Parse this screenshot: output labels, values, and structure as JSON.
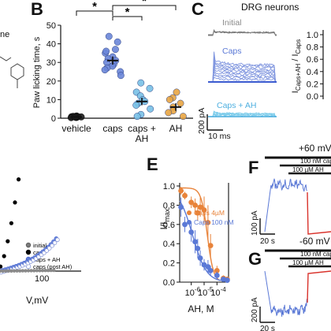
{
  "panel_letters": {
    "b": "B",
    "c": "C",
    "e": "E",
    "f": "F",
    "g": "G"
  },
  "fragments": {
    "top_left": "ne"
  },
  "colors": {
    "vehicle": "#1a1a1a",
    "caps": "#6a86d8",
    "caps_ah": "#78c0e6",
    "ah": "#e8a542",
    "orange": "#e8833a",
    "blue": "#5b79d6",
    "red": "#d9322b",
    "initial_trace": "#7a7a7a"
  },
  "chart_data": [
    {
      "id": "B",
      "type": "scatter",
      "categories": [
        "vehicle",
        "caps",
        "caps +\nAH",
        "AH"
      ],
      "ylabel": "Paw licking time, s",
      "ylim": [
        0,
        50
      ],
      "yticks": [
        0,
        10,
        20,
        30,
        40,
        50
      ],
      "groups": [
        {
          "name": "vehicle",
          "points": [
            0.4,
            0.6,
            0.8,
            1.0,
            0.5,
            1.2,
            0.3,
            0.7,
            0.9,
            0.6
          ],
          "mean": 0.7,
          "sem": 0.2
        },
        {
          "name": "caps",
          "points": [
            44,
            41,
            37,
            35,
            33,
            32,
            31,
            30,
            29,
            28,
            27,
            26,
            25,
            23,
            36
          ],
          "mean": 31,
          "sem": 2.2
        },
        {
          "name": "caps + AH",
          "points": [
            19,
            16,
            14,
            12,
            10,
            9,
            8,
            7,
            5,
            2,
            1
          ],
          "mean": 9,
          "sem": 2
        },
        {
          "name": "AH",
          "points": [
            14,
            11,
            10,
            8,
            6,
            4,
            3,
            1
          ],
          "mean": 6,
          "sem": 2
        }
      ],
      "significance": [
        {
          "from": "vehicle",
          "to": "caps",
          "label": "*"
        },
        {
          "from": "caps",
          "to": "AH",
          "label": "*"
        },
        {
          "from": "caps",
          "to": "caps + AH",
          "label": "*"
        }
      ]
    },
    {
      "id": "C",
      "type": "line",
      "title": "DRG neurons",
      "trace_labels": [
        "Initial",
        "Caps",
        "Caps + AH"
      ],
      "scale_bar": {
        "current": "200 pA",
        "time": "10 ms"
      },
      "ylabel": "Iₑ",
      "ylabel_parts": {
        "main": "I",
        "sub_num": "Caps+AH",
        "sep": " / I",
        "sub_den": "Caps"
      },
      "ylim": [
        0,
        1.0
      ],
      "yticks": [
        "1.0",
        "0.8",
        "0.6",
        "0.4",
        "0.2",
        "0.0"
      ]
    },
    {
      "id": "D",
      "type": "scatter",
      "xlabel": "V,mV",
      "xticks": [
        "100"
      ],
      "series": [
        {
          "name": "initial"
        },
        {
          "name": "caps"
        },
        {
          "name": "caps + AH"
        },
        {
          "name": "caps (post AH)"
        }
      ]
    },
    {
      "id": "E",
      "type": "line",
      "xlabel": "AH,  M",
      "ylabel_parts": {
        "main": "I/I",
        "sub": "max"
      },
      "xscale": "log",
      "xlim_exp": [
        -6.9,
        -3.1
      ],
      "xticks_exp": [
        -6,
        -5,
        -4
      ],
      "ylim": [
        0,
        1.0
      ],
      "yticks": [
        "0.0",
        "0.2",
        "0.4",
        "0.6",
        "0.8",
        "1.0"
      ],
      "x_exp": [
        -6.8,
        -6.5,
        -6.0,
        -5.7,
        -5.5,
        -5.3,
        -5.0,
        -4.7,
        -4.5,
        -4.0,
        -3.5,
        -3.2
      ],
      "series": [
        {
          "name": "Caps 4µM",
          "values": [
            0.95,
            0.9,
            0.83,
            0.8,
            0.72,
            0.78,
            0.75,
            0.62,
            0.38,
            0.12,
            0.04,
            0.03
          ],
          "err": [
            0.04,
            0.04,
            0.06,
            0.07,
            0.08,
            0.1,
            0.14,
            0.18,
            0.12,
            0.05,
            0.03,
            0.02
          ],
          "fit_ic50_exp": -4.75,
          "fit_hill": 1.8
        },
        {
          "name": "Caps 100 nM",
          "values": [
            0.78,
            0.6,
            0.52,
            0.42,
            0.35,
            0.25,
            0.18,
            0.16,
            0.12,
            0.07,
            0.03,
            0.02
          ],
          "err": [
            0.1,
            0.08,
            0.1,
            0.12,
            0.1,
            0.08,
            0.06,
            0.07,
            0.05,
            0.04,
            0.02,
            0.02
          ],
          "fit_ic50_exp": -5.9,
          "fit_hill": 0.8
        }
      ]
    },
    {
      "id": "F",
      "type": "line",
      "voltage": "+60 mV",
      "bars": [
        "100 nM cap",
        "100 µM AH"
      ],
      "scale_bar": {
        "current": "100 pA",
        "time": "20 s"
      }
    },
    {
      "id": "G",
      "type": "line",
      "voltage": "-60 mV",
      "bars": [
        "100 nM cap",
        "100 µM AH"
      ],
      "scale_bar": {
        "current": "200 pA",
        "time": "20 s"
      }
    }
  ]
}
